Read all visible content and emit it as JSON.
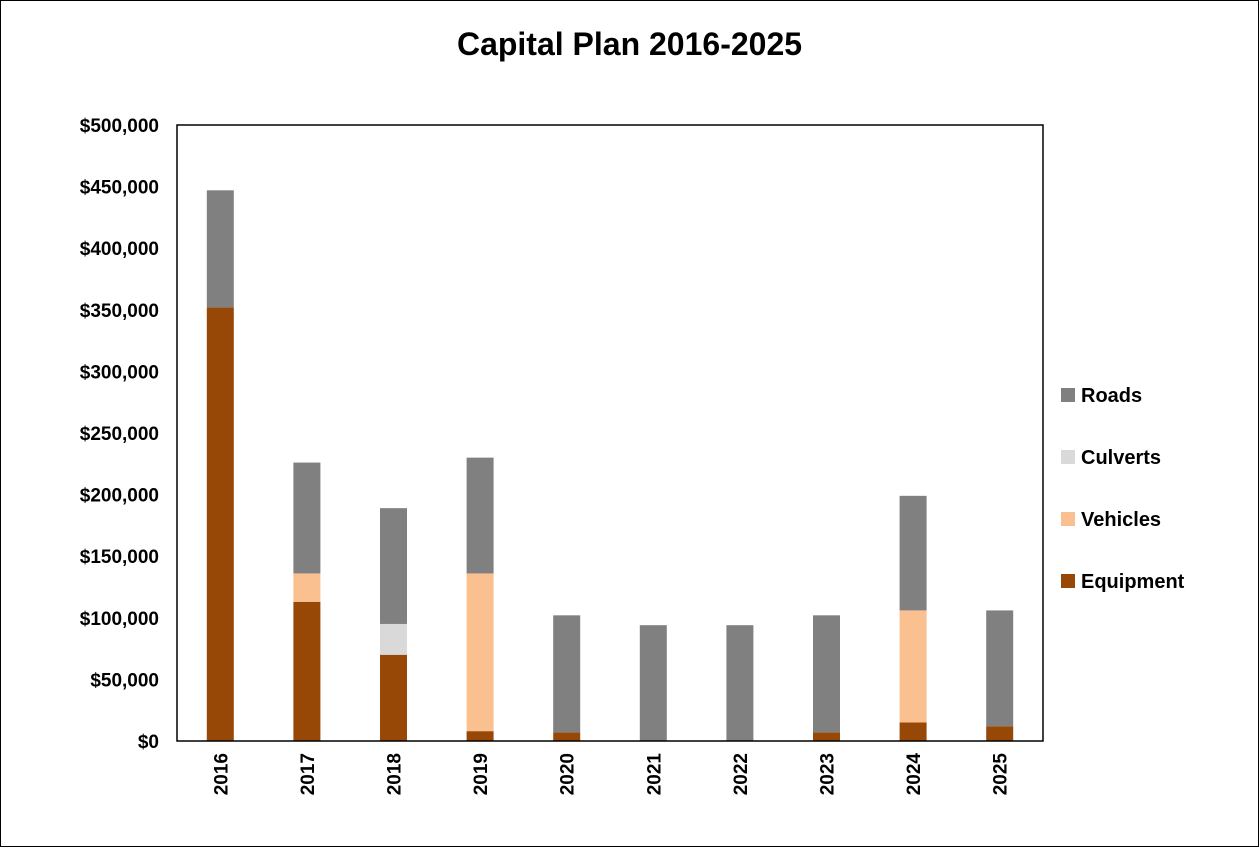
{
  "chart_data": {
    "type": "bar",
    "stacked": true,
    "title": "Capital Plan 2016-2025",
    "xlabel": "",
    "ylabel": "",
    "ylim": [
      0,
      500000
    ],
    "yticks": [
      0,
      50000,
      100000,
      150000,
      200000,
      250000,
      300000,
      350000,
      400000,
      450000,
      500000
    ],
    "ytick_labels": [
      "$0",
      "$50,000",
      "$100,000",
      "$150,000",
      "$200,000",
      "$250,000",
      "$300,000",
      "$350,000",
      "$400,000",
      "$450,000",
      "$500,000"
    ],
    "grid": false,
    "legend_position": "right",
    "categories": [
      "2016",
      "2017",
      "2018",
      "2019",
      "2020",
      "2021",
      "2022",
      "2023",
      "2024",
      "2025"
    ],
    "series": [
      {
        "name": "Equipment",
        "color": "#974706",
        "values": [
          352000,
          113000,
          70000,
          8000,
          7000,
          0,
          0,
          7000,
          15000,
          12000
        ]
      },
      {
        "name": "Vehicles",
        "color": "#FAC090",
        "values": [
          0,
          23000,
          0,
          128000,
          0,
          0,
          0,
          0,
          91000,
          0
        ]
      },
      {
        "name": "Culverts",
        "color": "#D9D9D9",
        "values": [
          0,
          0,
          25000,
          0,
          0,
          0,
          0,
          0,
          0,
          0
        ]
      },
      {
        "name": "Roads",
        "color": "#808080",
        "values": [
          95000,
          90000,
          94000,
          94000,
          95000,
          94000,
          94000,
          95000,
          93000,
          94000
        ]
      }
    ],
    "legend_order": [
      "Roads",
      "Culverts",
      "Vehicles",
      "Equipment"
    ]
  }
}
